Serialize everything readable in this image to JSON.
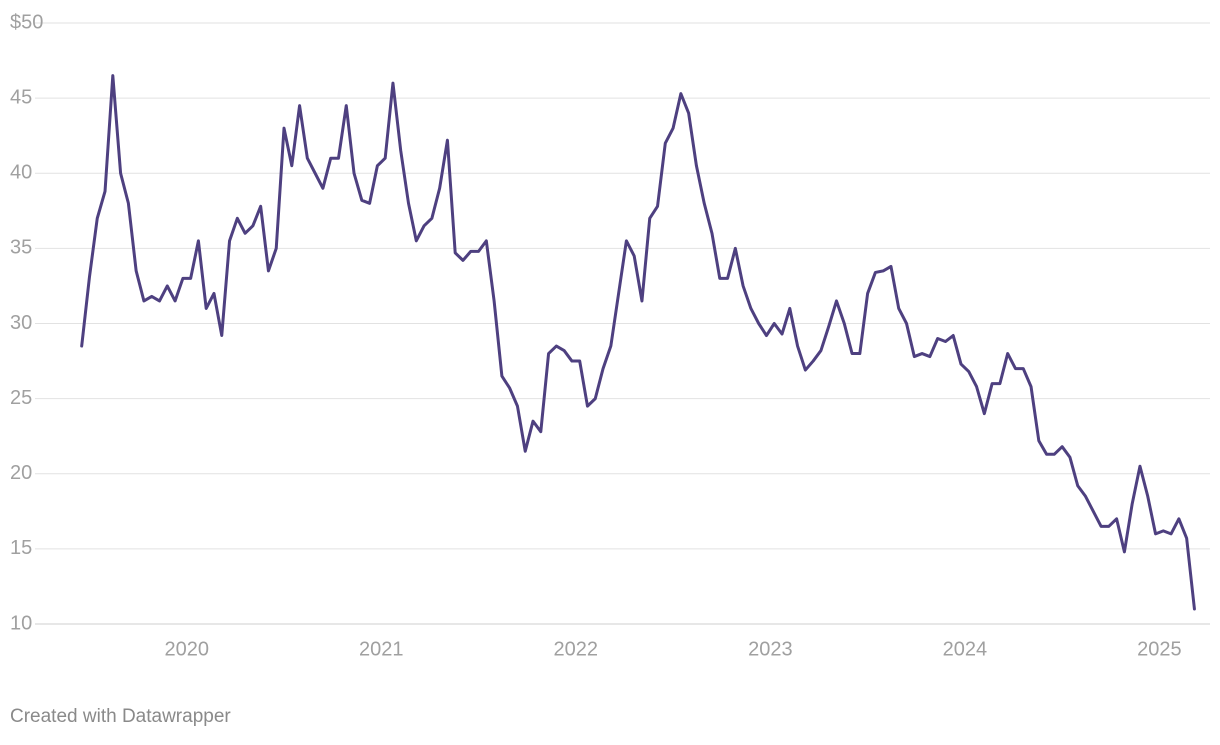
{
  "chart_data": {
    "type": "line",
    "xticks": [
      2020,
      2021,
      2022,
      2023,
      2024,
      2025
    ],
    "xlim": [
      2019.22,
      2025.26
    ],
    "ylim": [
      10,
      50
    ],
    "yticks": [
      10,
      15,
      20,
      25,
      30,
      35,
      40,
      45,
      {
        "value": 50,
        "label": "$50"
      }
    ],
    "grid": true,
    "footer": "Created with Datawrapper",
    "x": [
      2019.46,
      2019.5,
      2019.54,
      2019.58,
      2019.62,
      2019.66,
      2019.7,
      2019.74,
      2019.78,
      2019.82,
      2019.86,
      2019.9,
      2019.94,
      2019.98,
      2020.02,
      2020.06,
      2020.1,
      2020.14,
      2020.18,
      2020.22,
      2020.26,
      2020.3,
      2020.34,
      2020.38,
      2020.42,
      2020.46,
      2020.5,
      2020.54,
      2020.58,
      2020.62,
      2020.66,
      2020.7,
      2020.74,
      2020.78,
      2020.82,
      2020.86,
      2020.9,
      2020.94,
      2020.98,
      2021.02,
      2021.06,
      2021.1,
      2021.14,
      2021.18,
      2021.22,
      2021.26,
      2021.3,
      2021.34,
      2021.38,
      2021.42,
      2021.46,
      2021.5,
      2021.54,
      2021.58,
      2021.62,
      2021.66,
      2021.7,
      2021.74,
      2021.78,
      2021.82,
      2021.86,
      2021.9,
      2021.94,
      2021.98,
      2022.02,
      2022.06,
      2022.1,
      2022.14,
      2022.18,
      2022.22,
      2022.26,
      2022.3,
      2022.34,
      2022.38,
      2022.42,
      2022.46,
      2022.5,
      2022.54,
      2022.58,
      2022.62,
      2022.66,
      2022.7,
      2022.74,
      2022.78,
      2022.82,
      2022.86,
      2022.9,
      2022.94,
      2022.98,
      2023.02,
      2023.06,
      2023.1,
      2023.14,
      2023.18,
      2023.22,
      2023.26,
      2023.3,
      2023.34,
      2023.38,
      2023.42,
      2023.46,
      2023.5,
      2023.54,
      2023.58,
      2023.62,
      2023.66,
      2023.7,
      2023.74,
      2023.78,
      2023.82,
      2023.86,
      2023.9,
      2023.94,
      2023.98,
      2024.02,
      2024.06,
      2024.1,
      2024.14,
      2024.18,
      2024.22,
      2024.26,
      2024.3,
      2024.34,
      2024.38,
      2024.42,
      2024.46,
      2024.5,
      2024.54,
      2024.58,
      2024.62,
      2024.66,
      2024.7,
      2024.74,
      2024.78,
      2024.82,
      2024.86,
      2024.9,
      2024.94,
      2024.98,
      2025.02,
      2025.06,
      2025.1,
      2025.14,
      2025.18
    ],
    "series": [
      {
        "color": "#4e4080",
        "values": [
          28.5,
          33.1,
          37,
          38.8,
          46.5,
          40,
          38,
          33.5,
          31.5,
          31.8,
          31.5,
          32.5,
          31.5,
          33,
          33,
          35.5,
          31,
          32,
          29.2,
          35.5,
          37,
          36,
          36.5,
          37.8,
          33.5,
          35,
          43,
          40.5,
          44.5,
          41,
          40,
          39,
          41,
          41,
          44.5,
          40,
          38.2,
          38,
          40.5,
          41,
          46,
          41.5,
          38,
          35.5,
          36.5,
          37,
          39,
          42.2,
          34.7,
          34.2,
          34.8,
          34.8,
          35.5,
          31.5,
          26.5,
          25.7,
          24.5,
          21.5,
          23.5,
          22.8,
          28,
          28.5,
          28.2,
          27.5,
          27.5,
          24.5,
          25,
          27,
          28.5,
          32,
          35.5,
          34.5,
          31.5,
          37,
          37.8,
          42,
          43,
          45.3,
          44,
          40.5,
          38,
          36,
          33,
          33,
          35,
          32.5,
          31,
          30,
          29.2,
          30,
          29.3,
          31,
          28.5,
          26.9,
          27.5,
          28.2,
          29.8,
          31.5,
          30,
          28,
          28,
          32,
          33.4,
          33.5,
          33.8,
          31,
          30,
          27.8,
          28,
          27.8,
          29,
          28.8,
          29.2,
          27.3,
          26.8,
          25.8,
          24,
          26,
          26,
          28,
          27,
          27,
          25.8,
          22.2,
          21.3,
          21.3,
          21.8,
          21.1,
          19.2,
          18.5,
          17.5,
          16.5,
          16.5,
          17,
          14.8,
          18,
          20.5,
          18.5,
          16,
          16.2,
          16,
          17,
          15.7,
          11
        ]
      }
    ]
  }
}
